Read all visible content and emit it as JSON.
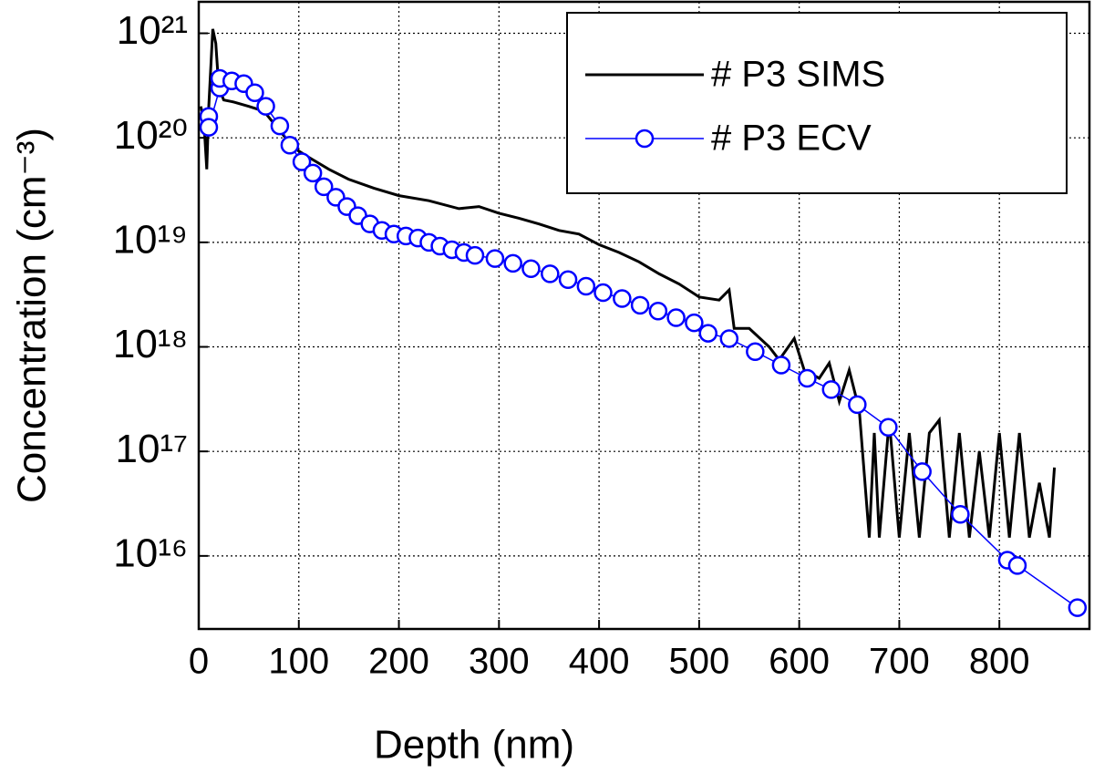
{
  "chart_data": {
    "type": "line",
    "xlabel": "Depth (nm)",
    "ylabel": "Concentration (cm⁻³)",
    "yscale": "log",
    "grid": true,
    "legend": "upper right",
    "xlim": [
      0,
      890
    ],
    "xticks": [
      0,
      100,
      200,
      300,
      400,
      500,
      600,
      700,
      800
    ],
    "ylim": [
      2000000000000000.0,
      2e+21
    ],
    "yticks": [
      {
        "value": 1e+16,
        "label": "10¹⁶"
      },
      {
        "value": 1e+17,
        "label": "10¹⁷"
      },
      {
        "value": 1e+18,
        "label": "10¹⁸"
      },
      {
        "value": 1e+19,
        "label": "10¹⁹"
      },
      {
        "value": 1e+20,
        "label": "10²⁰"
      },
      {
        "value": 1e+21,
        "label": "10²¹"
      }
    ],
    "series": [
      {
        "name": "# P3 SIMS",
        "color": "#000000",
        "marker": "none",
        "x": [
          2,
          5,
          8,
          10,
          14,
          17,
          20,
          25,
          35,
          50,
          65,
          80,
          95,
          110,
          130,
          150,
          175,
          200,
          230,
          260,
          280,
          300,
          320,
          340,
          360,
          380,
          400,
          420,
          440,
          460,
          480,
          500,
          520,
          530,
          535,
          550,
          570,
          580,
          595,
          605,
          620,
          630,
          640,
          650,
          660,
          670,
          675,
          680,
          690,
          700,
          710,
          720,
          730,
          740,
          750,
          760,
          770,
          780,
          790,
          800,
          810,
          820,
          830,
          840,
          850,
          855
        ],
        "values": [
          2e+20,
          1.5e+20,
          5e+19,
          2e+20,
          1.1e+21,
          8e+20,
          3e+20,
          2.3e+20,
          2.2e+20,
          2e+20,
          1.8e+20,
          1.2e+20,
          8e+19,
          6.5e+19,
          5e+19,
          4e+19,
          3.3e+19,
          2.8e+19,
          2.5e+19,
          2.1e+19,
          2.2e+19,
          1.9e+19,
          1.7e+19,
          1.5e+19,
          1.3e+19,
          1.2e+19,
          9.5e+18,
          8e+18,
          6.5e+18,
          5e+18,
          4e+18,
          3e+18,
          2.8e+18,
          3.5e+18,
          1.5e+18,
          1.5e+18,
          1e+18,
          7.5e+17,
          1.2e+18,
          6e+17,
          5e+17,
          7e+17,
          3e+17,
          6e+17,
          2.5e+17,
          1.5e+16,
          1.5e+17,
          1.5e+16,
          2e+17,
          1.5e+16,
          1.5e+17,
          1.5e+16,
          1.5e+17,
          2e+17,
          1.5e+16,
          1.5e+17,
          1.5e+16,
          1e+17,
          1.5e+16,
          1.5e+17,
          1.5e+16,
          1.5e+17,
          1.5e+16,
          5e+16,
          1.5e+16,
          7e+16
        ]
      },
      {
        "name": "# P3 ECV",
        "color": "#0000ff",
        "marker": "circle",
        "x": [
          10,
          10,
          21,
          21,
          33,
          45,
          56,
          67,
          81,
          91,
          103,
          114,
          125,
          137,
          148,
          159,
          171,
          183,
          195,
          207,
          219,
          230,
          241,
          253,
          265,
          276,
          296,
          314,
          332,
          351,
          369,
          387,
          404,
          423,
          441,
          459,
          477,
          495,
          509,
          530,
          556,
          582,
          608,
          632,
          658,
          689,
          723,
          761,
          808,
          818,
          878
        ],
        "values": [
          1.6e+20,
          1.26e+20,
          3e+20,
          3.7e+20,
          3.5e+20,
          3.3e+20,
          2.7e+20,
          2e+20,
          1.3e+20,
          8.5e+19,
          5.9e+19,
          4.6e+19,
          3.4e+19,
          2.7e+19,
          2.2e+19,
          1.8e+19,
          1.5e+19,
          1.3e+19,
          1.2e+19,
          1.15e+19,
          1.1e+19,
          1e+19,
          9.2e+18,
          8.5e+18,
          8e+18,
          7.5e+18,
          7e+18,
          6.3e+18,
          5.6e+18,
          5e+18,
          4.4e+18,
          3.8e+18,
          3.3e+18,
          2.9e+18,
          2.5e+18,
          2.2e+18,
          1.9e+18,
          1.7e+18,
          1.35e+18,
          1.2e+18,
          9e+17,
          6.7e+17,
          5e+17,
          3.9e+17,
          2.8e+17,
          1.7e+17,
          6.4e+16,
          2.5e+16,
          9100000000000000.0,
          8100000000000000.0,
          3200000000000000.0
        ]
      }
    ]
  }
}
